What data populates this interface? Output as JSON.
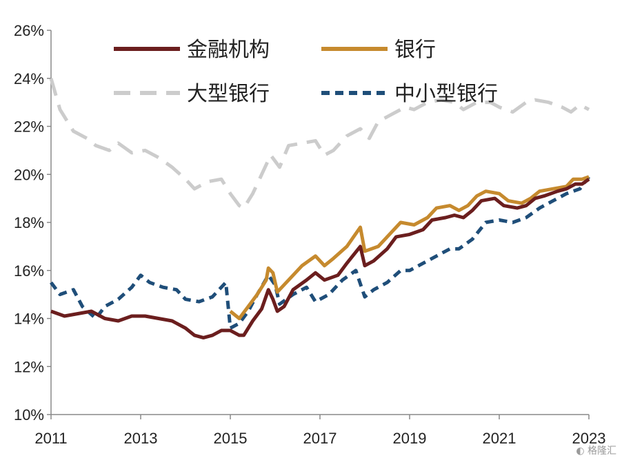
{
  "chart_data": {
    "type": "line",
    "title": "",
    "xlabel": "",
    "ylabel": "",
    "xlim": [
      2011,
      2023
    ],
    "ylim": [
      10,
      26
    ],
    "x_ticks": [
      "2011",
      "2013",
      "2015",
      "2017",
      "2019",
      "2021",
      "2023"
    ],
    "y_ticks": [
      "10%",
      "12%",
      "14%",
      "16%",
      "18%",
      "20%",
      "22%",
      "24%",
      "26%"
    ],
    "legend_position": "top",
    "series": [
      {
        "name": "金融机构",
        "color": "#6B1E1E",
        "style": "solid",
        "points": [
          [
            2011.0,
            14.3
          ],
          [
            2011.3,
            14.1
          ],
          [
            2011.6,
            14.2
          ],
          [
            2011.9,
            14.3
          ],
          [
            2012.2,
            14.0
          ],
          [
            2012.5,
            13.9
          ],
          [
            2012.8,
            14.1
          ],
          [
            2013.1,
            14.1
          ],
          [
            2013.4,
            14.0
          ],
          [
            2013.7,
            13.9
          ],
          [
            2014.0,
            13.6
          ],
          [
            2014.2,
            13.3
          ],
          [
            2014.4,
            13.2
          ],
          [
            2014.6,
            13.3
          ],
          [
            2014.8,
            13.5
          ],
          [
            2015.0,
            13.5
          ],
          [
            2015.2,
            13.3
          ],
          [
            2015.3,
            13.3
          ],
          [
            2015.5,
            13.9
          ],
          [
            2015.7,
            14.4
          ],
          [
            2015.85,
            15.2
          ],
          [
            2015.95,
            14.8
          ],
          [
            2016.05,
            14.3
          ],
          [
            2016.2,
            14.5
          ],
          [
            2016.4,
            15.2
          ],
          [
            2016.7,
            15.6
          ],
          [
            2016.9,
            15.9
          ],
          [
            2017.1,
            15.6
          ],
          [
            2017.4,
            15.8
          ],
          [
            2017.6,
            16.3
          ],
          [
            2017.9,
            17.0
          ],
          [
            2018.0,
            16.2
          ],
          [
            2018.2,
            16.4
          ],
          [
            2018.5,
            16.9
          ],
          [
            2018.7,
            17.4
          ],
          [
            2019.0,
            17.5
          ],
          [
            2019.3,
            17.7
          ],
          [
            2019.5,
            18.1
          ],
          [
            2019.8,
            18.2
          ],
          [
            2020.0,
            18.3
          ],
          [
            2020.2,
            18.2
          ],
          [
            2020.4,
            18.5
          ],
          [
            2020.6,
            18.9
          ],
          [
            2020.9,
            19.0
          ],
          [
            2021.1,
            18.7
          ],
          [
            2021.4,
            18.6
          ],
          [
            2021.6,
            18.7
          ],
          [
            2021.8,
            19.0
          ],
          [
            2022.0,
            19.1
          ],
          [
            2022.3,
            19.3
          ],
          [
            2022.5,
            19.4
          ],
          [
            2022.7,
            19.6
          ],
          [
            2022.85,
            19.6
          ],
          [
            2023.0,
            19.8
          ]
        ]
      },
      {
        "name": "银行",
        "color": "#C68A2E",
        "style": "solid",
        "points": [
          [
            2015.0,
            14.3
          ],
          [
            2015.2,
            14.0
          ],
          [
            2015.4,
            14.5
          ],
          [
            2015.6,
            15.0
          ],
          [
            2015.8,
            15.6
          ],
          [
            2015.85,
            16.1
          ],
          [
            2015.95,
            15.9
          ],
          [
            2016.05,
            15.1
          ],
          [
            2016.3,
            15.6
          ],
          [
            2016.6,
            16.2
          ],
          [
            2016.9,
            16.6
          ],
          [
            2017.1,
            16.2
          ],
          [
            2017.3,
            16.5
          ],
          [
            2017.6,
            17.0
          ],
          [
            2017.9,
            17.8
          ],
          [
            2018.0,
            16.8
          ],
          [
            2018.3,
            17.0
          ],
          [
            2018.6,
            17.6
          ],
          [
            2018.8,
            18.0
          ],
          [
            2019.1,
            17.9
          ],
          [
            2019.4,
            18.2
          ],
          [
            2019.6,
            18.6
          ],
          [
            2019.9,
            18.7
          ],
          [
            2020.1,
            18.5
          ],
          [
            2020.3,
            18.7
          ],
          [
            2020.5,
            19.1
          ],
          [
            2020.7,
            19.3
          ],
          [
            2021.0,
            19.2
          ],
          [
            2021.2,
            18.9
          ],
          [
            2021.5,
            18.8
          ],
          [
            2021.7,
            19.0
          ],
          [
            2021.9,
            19.3
          ],
          [
            2022.2,
            19.4
          ],
          [
            2022.5,
            19.5
          ],
          [
            2022.65,
            19.8
          ],
          [
            2022.85,
            19.8
          ],
          [
            2023.0,
            19.9
          ]
        ]
      },
      {
        "name": "大型银行",
        "color": "#CCCCCC",
        "style": "long-dash",
        "points": [
          [
            2011.0,
            24.0
          ],
          [
            2011.2,
            22.7
          ],
          [
            2011.5,
            21.8
          ],
          [
            2011.8,
            21.5
          ],
          [
            2012.0,
            21.2
          ],
          [
            2012.3,
            21.0
          ],
          [
            2012.5,
            21.3
          ],
          [
            2012.8,
            20.9
          ],
          [
            2013.1,
            21.0
          ],
          [
            2013.4,
            20.7
          ],
          [
            2013.7,
            20.3
          ],
          [
            2014.0,
            19.8
          ],
          [
            2014.2,
            19.4
          ],
          [
            2014.5,
            19.7
          ],
          [
            2014.8,
            19.8
          ],
          [
            2015.0,
            19.2
          ],
          [
            2015.2,
            18.7
          ],
          [
            2015.3,
            18.6
          ],
          [
            2015.5,
            19.2
          ],
          [
            2015.7,
            20.0
          ],
          [
            2015.9,
            20.8
          ],
          [
            2016.1,
            20.3
          ],
          [
            2016.3,
            21.2
          ],
          [
            2016.6,
            21.3
          ],
          [
            2016.9,
            21.4
          ],
          [
            2017.1,
            20.8
          ],
          [
            2017.3,
            21.0
          ],
          [
            2017.6,
            21.6
          ],
          [
            2017.9,
            21.9
          ],
          [
            2018.1,
            21.5
          ],
          [
            2018.3,
            22.2
          ],
          [
            2018.6,
            22.5
          ],
          [
            2018.9,
            22.8
          ],
          [
            2019.1,
            22.7
          ],
          [
            2019.4,
            23.0
          ],
          [
            2019.7,
            23.1
          ],
          [
            2020.0,
            23.0
          ],
          [
            2020.2,
            22.7
          ],
          [
            2020.5,
            23.0
          ],
          [
            2020.8,
            23.0
          ],
          [
            2021.0,
            22.8
          ],
          [
            2021.3,
            22.6
          ],
          [
            2021.6,
            23.0
          ],
          [
            2021.8,
            23.1
          ],
          [
            2022.1,
            23.0
          ],
          [
            2022.4,
            22.8
          ],
          [
            2022.6,
            22.6
          ],
          [
            2022.8,
            22.9
          ],
          [
            2023.0,
            22.7
          ]
        ]
      },
      {
        "name": "中小型银行",
        "color": "#1F4E79",
        "style": "dash",
        "points": [
          [
            2011.0,
            15.5
          ],
          [
            2011.2,
            15.0
          ],
          [
            2011.5,
            15.2
          ],
          [
            2011.7,
            14.5
          ],
          [
            2012.0,
            14.0
          ],
          [
            2012.2,
            14.5
          ],
          [
            2012.5,
            14.8
          ],
          [
            2012.8,
            15.3
          ],
          [
            2013.0,
            15.8
          ],
          [
            2013.2,
            15.5
          ],
          [
            2013.5,
            15.3
          ],
          [
            2013.8,
            15.2
          ],
          [
            2014.0,
            14.8
          ],
          [
            2014.3,
            14.7
          ],
          [
            2014.6,
            14.9
          ],
          [
            2014.9,
            15.5
          ],
          [
            2015.0,
            13.6
          ],
          [
            2015.2,
            13.8
          ],
          [
            2015.4,
            14.3
          ],
          [
            2015.6,
            15.0
          ],
          [
            2015.85,
            15.8
          ],
          [
            2016.0,
            15.4
          ],
          [
            2016.1,
            14.6
          ],
          [
            2016.4,
            15.0
          ],
          [
            2016.7,
            15.3
          ],
          [
            2016.9,
            14.7
          ],
          [
            2017.2,
            15.0
          ],
          [
            2017.5,
            15.6
          ],
          [
            2017.8,
            16.0
          ],
          [
            2018.0,
            14.9
          ],
          [
            2018.2,
            15.2
          ],
          [
            2018.5,
            15.5
          ],
          [
            2018.8,
            16.0
          ],
          [
            2019.0,
            16.0
          ],
          [
            2019.3,
            16.3
          ],
          [
            2019.6,
            16.6
          ],
          [
            2019.9,
            16.9
          ],
          [
            2020.1,
            16.9
          ],
          [
            2020.4,
            17.3
          ],
          [
            2020.7,
            18.0
          ],
          [
            2021.0,
            18.1
          ],
          [
            2021.3,
            18.0
          ],
          [
            2021.6,
            18.2
          ],
          [
            2021.9,
            18.6
          ],
          [
            2022.2,
            18.9
          ],
          [
            2022.5,
            19.2
          ],
          [
            2022.8,
            19.4
          ],
          [
            2023.0,
            19.9
          ]
        ]
      }
    ]
  },
  "watermark": {
    "text": "格隆汇",
    "icon": "logo-icon"
  }
}
